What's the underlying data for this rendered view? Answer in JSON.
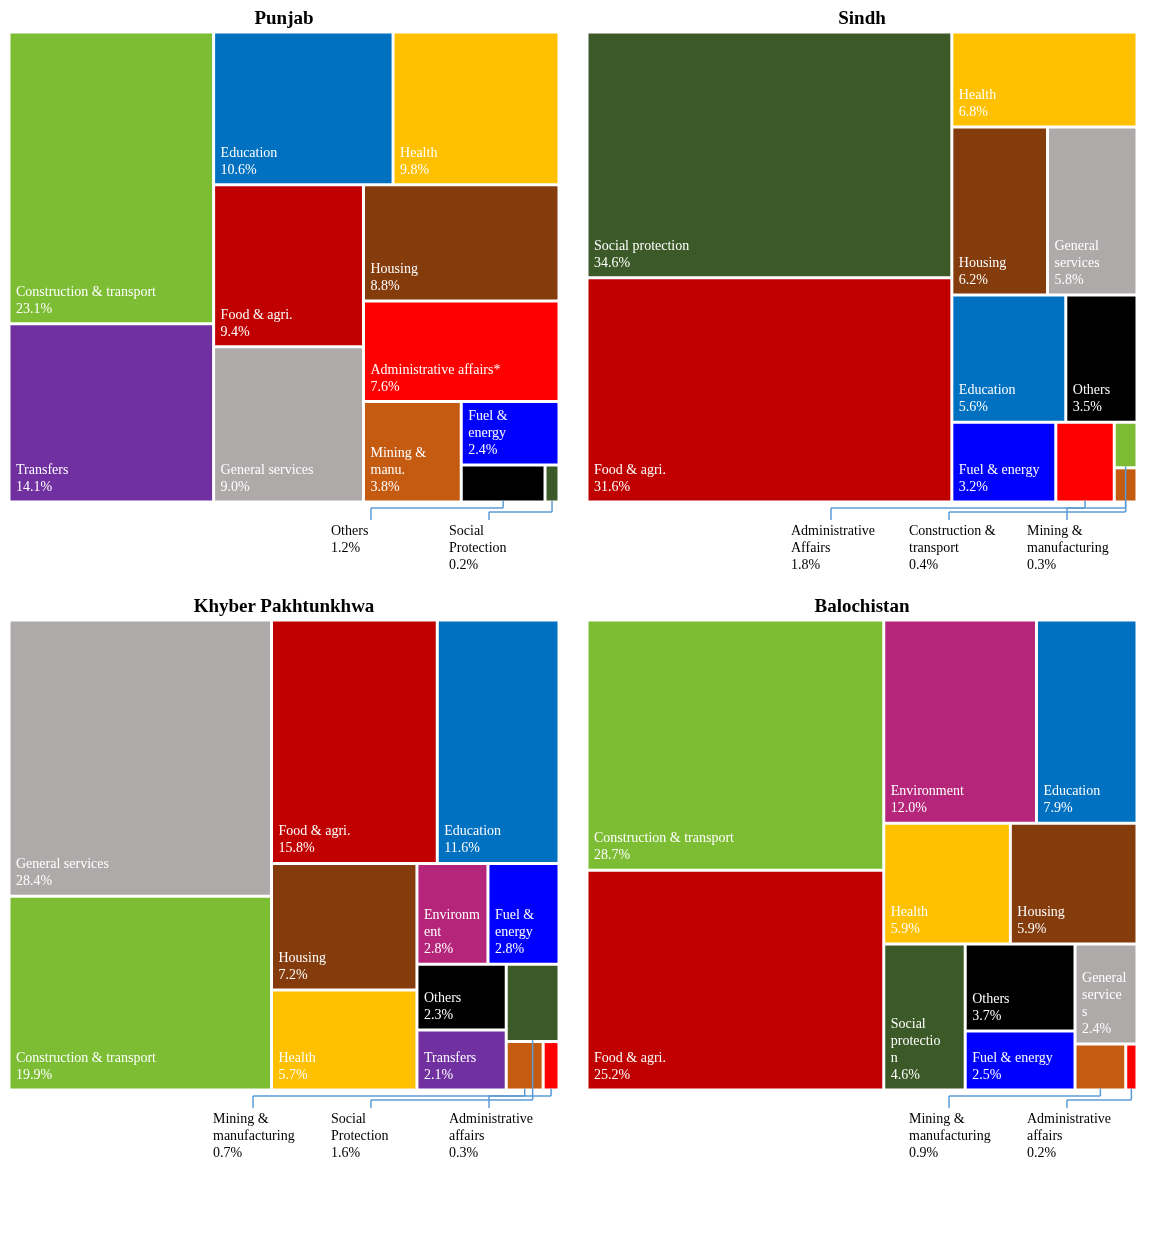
{
  "chart_data": [
    {
      "type": "other",
      "title": "Punjab",
      "categories": [
        "Construction & transport",
        "Transfers",
        "Education",
        "Health",
        "Food & agri.",
        "General services",
        "Housing",
        "Administrative affairs*",
        "Mining & manu.",
        "Fuel & energy",
        "Others",
        "Social Protection"
      ],
      "values": [
        23.1,
        14.1,
        10.6,
        9.8,
        9.4,
        9.0,
        8.8,
        7.6,
        3.8,
        2.4,
        1.2,
        0.2
      ],
      "value_labels": [
        "23.1%",
        "14.1%",
        "10.6%",
        "9.8%",
        "9.4%",
        "9.0%",
        "8.8%",
        "7.6%",
        "3.8%",
        "2.4%",
        "1.2%",
        "0.2%"
      ],
      "colors": [
        "#7cbd33",
        "#7030a0",
        "#0070c0",
        "#ffc000",
        "#c00000",
        "#aeaaaa",
        "#843c0c",
        "#ff0000",
        "#c55a11",
        "#0000ff",
        "#000000",
        "#3c5a28"
      ]
    },
    {
      "type": "other",
      "title": "Sindh",
      "categories": [
        "Social protection",
        "Food & agri.",
        "Health",
        "Housing",
        "General services",
        "Education",
        "Others",
        "Fuel & energy",
        "Administrative Affairs",
        "Construction & transport",
        "Mining & manufacturing"
      ],
      "values": [
        34.6,
        31.6,
        6.8,
        6.2,
        5.8,
        5.6,
        3.5,
        3.2,
        1.8,
        0.4,
        0.3
      ],
      "value_labels": [
        "34.6%",
        "31.6%",
        "6.8%",
        "6.2%",
        "5.8%",
        "5.6%",
        "3.5%",
        "3.2%",
        "1.8%",
        "0.4%",
        "0.3%"
      ],
      "colors": [
        "#3c5a28",
        "#c00000",
        "#ffc000",
        "#843c0c",
        "#aeaaaa",
        "#0070c0",
        "#000000",
        "#0000ff",
        "#ff0000",
        "#7cbd33",
        "#c55a11"
      ]
    },
    {
      "type": "other",
      "title": "Khyber Pakhtunkhwa",
      "categories": [
        "General services",
        "Construction & transport",
        "Food & agri.",
        "Education",
        "Housing",
        "Health",
        "Environment",
        "Fuel & energy",
        "Others",
        "Transfers",
        "Social Protection",
        "Mining & manufacturing",
        "Administrative affairs"
      ],
      "values": [
        28.4,
        19.9,
        15.8,
        11.6,
        7.2,
        5.7,
        2.8,
        2.8,
        2.3,
        2.1,
        1.6,
        0.7,
        0.3
      ],
      "value_labels": [
        "28.4%",
        "19.9%",
        "15.8%",
        "11.6%",
        "7.2%",
        "5.7%",
        "2.8%",
        "2.8%",
        "2.3%",
        "2.1%",
        "1.6%",
        "0.7%",
        "0.3%"
      ],
      "colors": [
        "#aeaaaa",
        "#7cbd33",
        "#c00000",
        "#0070c0",
        "#843c0c",
        "#ffc000",
        "#b5267a",
        "#0000ff",
        "#000000",
        "#7030a0",
        "#3c5a28",
        "#c55a11",
        "#ff0000"
      ]
    },
    {
      "type": "other",
      "title": "Balochistan",
      "categories": [
        "Construction & transport",
        "Food & agri.",
        "Environment",
        "Education",
        "Health",
        "Housing",
        "Social protection",
        "Others",
        "Fuel & energy",
        "General services",
        "Mining & manufacturing",
        "Administrative affairs"
      ],
      "values": [
        28.7,
        25.2,
        12.0,
        7.9,
        5.9,
        5.9,
        4.6,
        3.7,
        2.5,
        2.4,
        0.9,
        0.2
      ],
      "value_labels": [
        "28.7%",
        "25.2%",
        "12.0%",
        "7.9%",
        "5.9%",
        "5.9%",
        "4.6%",
        "3.7%",
        "2.5%",
        "2.4%",
        "0.9%",
        "0.2%"
      ],
      "colors": [
        "#7cbd33",
        "#c00000",
        "#b5267a",
        "#0070c0",
        "#ffc000",
        "#843c0c",
        "#3c5a28",
        "#000000",
        "#0000ff",
        "#aeaaaa",
        "#c55a11",
        "#ff0000"
      ]
    }
  ]
}
